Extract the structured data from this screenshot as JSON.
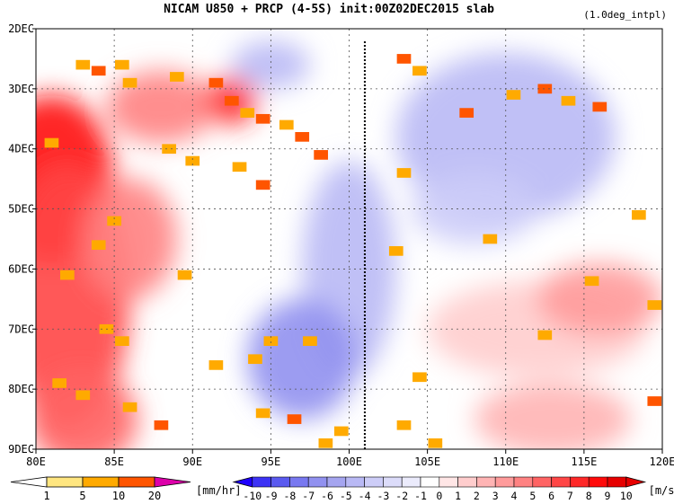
{
  "chart_data": {
    "type": "heatmap",
    "title": "NICAM  U850 + PRCP (4-5S) init:00Z02DEC2015 slab",
    "note": "(1.0deg_intpl)",
    "x_axis": {
      "range": [
        80,
        120
      ],
      "ticks": [
        80,
        85,
        90,
        95,
        100,
        105,
        110,
        115,
        120
      ],
      "tick_labels": [
        "80E",
        "85E",
        "90E",
        "95E",
        "100E",
        "105E",
        "110E",
        "115E",
        "120E"
      ]
    },
    "y_axis": {
      "range": [
        2,
        9
      ],
      "direction": "top-down",
      "ticks": [
        2,
        3,
        4,
        5,
        6,
        7,
        8,
        9
      ],
      "tick_labels": [
        "2DEC",
        "3DEC",
        "4DEC",
        "5DEC",
        "6DEC",
        "7DEC",
        "8DEC",
        "9DEC"
      ]
    },
    "grid": true,
    "vertical_line": {
      "x": 101
    },
    "precip_colorbar": {
      "labels": [
        "1",
        "5",
        "10",
        "20"
      ],
      "unit": "[mm/hr]",
      "colors": [
        "#ffffff",
        "#ffe680",
        "#ffaa00",
        "#ff5500",
        "#dd00aa"
      ]
    },
    "wind_colorbar": {
      "labels": [
        "-10",
        "-9",
        "-8",
        "-7",
        "-6",
        "-5",
        "-4",
        "-3",
        "-2",
        "-1",
        "0",
        "1",
        "2",
        "3",
        "4",
        "5",
        "6",
        "7",
        "8",
        "9",
        "10"
      ],
      "unit": "[m/s]",
      "colors": [
        "#1e00ff",
        "#3c32f5",
        "#5a5af0",
        "#7878f0",
        "#9191f0",
        "#a5a5f0",
        "#b9b9f5",
        "#cdcdf8",
        "#dcdcfa",
        "#ebebfc",
        "#ffffff",
        "#ffe6e6",
        "#ffcdcd",
        "#ffb4b4",
        "#ff9b9b",
        "#ff8282",
        "#ff6464",
        "#ff4646",
        "#ff2828",
        "#ff0a0a",
        "#e60000"
      ]
    },
    "wind_regions": [
      {
        "lon": 81,
        "day": 4.5,
        "rx": 4,
        "ry": 1.4,
        "value": 9
      },
      {
        "lon": 82,
        "day": 6.5,
        "rx": 4,
        "ry": 2.2,
        "value": 7
      },
      {
        "lon": 83,
        "day": 8.5,
        "rx": 3.5,
        "ry": 0.8,
        "value": 6
      },
      {
        "lon": 88,
        "day": 3.3,
        "rx": 3.5,
        "ry": 0.6,
        "value": 5
      },
      {
        "lon": 92.5,
        "day": 3.2,
        "rx": 1.6,
        "ry": 0.4,
        "value": 8
      },
      {
        "lon": 86,
        "day": 5.5,
        "rx": 3,
        "ry": 1.0,
        "value": 5
      },
      {
        "lon": 95,
        "day": 2.6,
        "rx": 2.5,
        "ry": 0.4,
        "value": -4
      },
      {
        "lon": 100,
        "day": 6.0,
        "rx": 3,
        "ry": 1.8,
        "value": -4
      },
      {
        "lon": 97,
        "day": 7.5,
        "rx": 3.5,
        "ry": 1.0,
        "value": -6
      },
      {
        "lon": 110,
        "day": 3.8,
        "rx": 7,
        "ry": 1.4,
        "value": -4
      },
      {
        "lon": 108,
        "day": 5.0,
        "rx": 4,
        "ry": 0.6,
        "value": -3
      },
      {
        "lon": 112,
        "day": 7.0,
        "rx": 7,
        "ry": 0.8,
        "value": 2
      },
      {
        "lon": 116,
        "day": 6.5,
        "rx": 4,
        "ry": 0.6,
        "value": 4
      },
      {
        "lon": 113,
        "day": 8.5,
        "rx": 5,
        "ry": 0.6,
        "value": 3
      }
    ],
    "precip_cells": [
      {
        "lon": 83,
        "day": 2.6,
        "value": 5
      },
      {
        "lon": 84,
        "day": 2.7,
        "value": 10
      },
      {
        "lon": 85.5,
        "day": 2.6,
        "value": 5
      },
      {
        "lon": 86,
        "day": 2.9,
        "value": 5
      },
      {
        "lon": 89,
        "day": 2.8,
        "value": 5
      },
      {
        "lon": 91.5,
        "day": 2.9,
        "value": 10
      },
      {
        "lon": 92.5,
        "day": 3.2,
        "value": 10
      },
      {
        "lon": 93.5,
        "day": 3.4,
        "value": 5
      },
      {
        "lon": 94.5,
        "day": 3.5,
        "value": 10
      },
      {
        "lon": 96,
        "day": 3.6,
        "value": 5
      },
      {
        "lon": 97,
        "day": 3.8,
        "value": 10
      },
      {
        "lon": 98.2,
        "day": 4.1,
        "value": 10
      },
      {
        "lon": 81,
        "day": 3.9,
        "value": 5
      },
      {
        "lon": 88.5,
        "day": 4.0,
        "value": 5
      },
      {
        "lon": 90,
        "day": 4.2,
        "value": 5
      },
      {
        "lon": 93,
        "day": 4.3,
        "value": 5
      },
      {
        "lon": 94.5,
        "day": 4.6,
        "value": 10
      },
      {
        "lon": 85,
        "day": 5.2,
        "value": 5
      },
      {
        "lon": 84,
        "day": 5.6,
        "value": 5
      },
      {
        "lon": 82,
        "day": 6.1,
        "value": 5
      },
      {
        "lon": 89.5,
        "day": 6.1,
        "value": 5
      },
      {
        "lon": 84.5,
        "day": 7.0,
        "value": 5
      },
      {
        "lon": 85.5,
        "day": 7.2,
        "value": 5
      },
      {
        "lon": 81.5,
        "day": 7.9,
        "value": 5
      },
      {
        "lon": 83,
        "day": 8.1,
        "value": 5
      },
      {
        "lon": 86,
        "day": 8.3,
        "value": 5
      },
      {
        "lon": 88,
        "day": 8.6,
        "value": 10
      },
      {
        "lon": 91.5,
        "day": 7.6,
        "value": 5
      },
      {
        "lon": 94,
        "day": 7.5,
        "value": 5
      },
      {
        "lon": 95,
        "day": 7.2,
        "value": 5
      },
      {
        "lon": 97.5,
        "day": 7.2,
        "value": 5
      },
      {
        "lon": 94.5,
        "day": 8.4,
        "value": 5
      },
      {
        "lon": 96.5,
        "day": 8.5,
        "value": 10
      },
      {
        "lon": 98.5,
        "day": 8.9,
        "value": 5
      },
      {
        "lon": 99.5,
        "day": 8.7,
        "value": 5
      },
      {
        "lon": 103.5,
        "day": 2.5,
        "value": 10
      },
      {
        "lon": 104.5,
        "day": 2.7,
        "value": 5
      },
      {
        "lon": 107.5,
        "day": 3.4,
        "value": 10
      },
      {
        "lon": 110.5,
        "day": 3.1,
        "value": 5
      },
      {
        "lon": 112.5,
        "day": 3.0,
        "value": 10
      },
      {
        "lon": 114,
        "day": 3.2,
        "value": 5
      },
      {
        "lon": 116,
        "day": 3.3,
        "value": 10
      },
      {
        "lon": 103.5,
        "day": 4.4,
        "value": 5
      },
      {
        "lon": 103,
        "day": 5.7,
        "value": 5
      },
      {
        "lon": 104.5,
        "day": 7.8,
        "value": 5
      },
      {
        "lon": 103.5,
        "day": 8.6,
        "value": 5
      },
      {
        "lon": 105.5,
        "day": 8.9,
        "value": 5
      },
      {
        "lon": 109,
        "day": 5.5,
        "value": 5
      },
      {
        "lon": 115.5,
        "day": 6.2,
        "value": 5
      },
      {
        "lon": 118.5,
        "day": 5.1,
        "value": 5
      },
      {
        "lon": 119.5,
        "day": 8.2,
        "value": 10
      },
      {
        "lon": 112.5,
        "day": 7.1,
        "value": 5
      },
      {
        "lon": 119.5,
        "day": 6.6,
        "value": 5
      }
    ]
  }
}
